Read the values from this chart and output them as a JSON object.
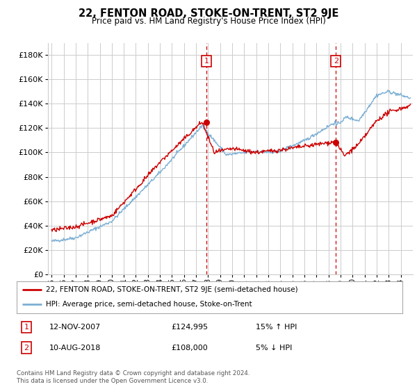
{
  "title": "22, FENTON ROAD, STOKE-ON-TRENT, ST2 9JE",
  "subtitle": "Price paid vs. HM Land Registry's House Price Index (HPI)",
  "legend_label_red": "22, FENTON ROAD, STOKE-ON-TRENT, ST2 9JE (semi-detached house)",
  "legend_label_blue": "HPI: Average price, semi-detached house, Stoke-on-Trent",
  "transaction1_date": "12-NOV-2007",
  "transaction1_price": "£124,995",
  "transaction1_hpi": "15% ↑ HPI",
  "transaction2_date": "10-AUG-2018",
  "transaction2_price": "£108,000",
  "transaction2_hpi": "5% ↓ HPI",
  "footnote": "Contains HM Land Registry data © Crown copyright and database right 2024.\nThis data is licensed under the Open Government Licence v3.0.",
  "ylim": [
    0,
    190000
  ],
  "yticks": [
    0,
    20000,
    40000,
    60000,
    80000,
    100000,
    120000,
    140000,
    160000,
    180000
  ],
  "vline1_x": 2007.87,
  "vline2_x": 2018.61,
  "marker1_red_x": 2007.87,
  "marker1_red_y": 124995,
  "marker2_red_x": 2018.61,
  "marker2_red_y": 108000,
  "red_color": "#cc0000",
  "blue_color": "#7bafd4",
  "vline_color": "#cc0000",
  "bg_color": "#ffffff",
  "grid_color": "#cccccc",
  "box_color": "#cc0000",
  "xlim_left": 1994.7,
  "xlim_right": 2025.0
}
